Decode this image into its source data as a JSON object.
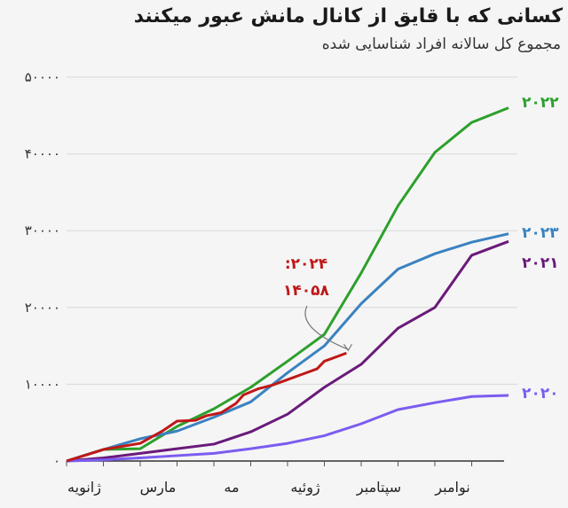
{
  "header": {
    "title": "کسانی که با قایق از کانال مانش عبور میکنند",
    "subtitle": "مجموع کل سالانه افراد شناسایی شده"
  },
  "chart_data": {
    "type": "line",
    "title": "کسانی که با قایق از کانال مانش عبور میکنند",
    "subtitle": "مجموع کل سالانه افراد شناسایی شده",
    "xlabel": "",
    "ylabel": "",
    "ylim": [
      0,
      50000
    ],
    "yticks": [
      0,
      10000,
      20000,
      30000,
      40000,
      50000
    ],
    "ytick_labels": [
      "۰",
      "۱۰۰۰۰",
      "۲۰۰۰۰",
      "۳۰۰۰۰",
      "۴۰۰۰۰",
      "۵۰۰۰۰"
    ],
    "x_months": [
      0,
      1,
      2,
      3,
      4,
      5,
      6,
      7,
      8,
      9,
      10,
      11,
      12
    ],
    "xtick_labels": [
      {
        "label": "ژانویه",
        "month": 1
      },
      {
        "label": "مارس",
        "month": 3
      },
      {
        "label": "مه",
        "month": 5
      },
      {
        "label": "ژوئیه",
        "month": 7
      },
      {
        "label": "سپتامبر",
        "month": 9
      },
      {
        "label": "نوامبر",
        "month": 11
      }
    ],
    "grid": true,
    "legend": "inline labels at line ends",
    "series": [
      {
        "name": "۲۰۲۲",
        "color": "#2ca02c",
        "values": [
          0,
          1500,
          1600,
          4500,
          6800,
          9600,
          13000,
          16500,
          24500,
          33250,
          40200,
          44100,
          46000
        ]
      },
      {
        "name": "۲۰۲۳",
        "color": "#3a82c0",
        "values": [
          0,
          1500,
          2900,
          3900,
          5700,
          7700,
          11500,
          15000,
          20500,
          25000,
          27000,
          28500,
          29600
        ]
      },
      {
        "name": "۲۰۲۱",
        "color": "#6a1a7a",
        "values": [
          0,
          400,
          1000,
          1600,
          2200,
          3800,
          6100,
          9600,
          12600,
          17300,
          20000,
          26800,
          28600
        ]
      },
      {
        "name": "۲۰۲۰",
        "color": "#7b5cf0",
        "values": [
          0,
          150,
          400,
          700,
          1000,
          1600,
          2300,
          3300,
          4850,
          6700,
          7600,
          8400,
          8550
        ]
      },
      {
        "name": "۲۰۲۴",
        "color": "#c01818",
        "values_partial": [
          [
            0,
            0
          ],
          [
            1,
            1500
          ],
          [
            2,
            2300
          ],
          [
            2.6,
            3900
          ],
          [
            3,
            5200
          ],
          [
            3.5,
            5300
          ],
          [
            3.8,
            5900
          ],
          [
            4.2,
            6300
          ],
          [
            4.6,
            7500
          ],
          [
            4.8,
            8600
          ],
          [
            5.2,
            9400
          ],
          [
            5.6,
            9900
          ],
          [
            6,
            10600
          ],
          [
            6.4,
            11300
          ],
          [
            6.8,
            12000
          ],
          [
            7.0,
            13000
          ],
          [
            7.4,
            13700
          ],
          [
            7.6,
            14058
          ]
        ],
        "annotation": {
          "text_line1": ":۲۰۲۴",
          "text_line2": "۱۴۰۵۸",
          "value": 14058
        }
      }
    ]
  }
}
